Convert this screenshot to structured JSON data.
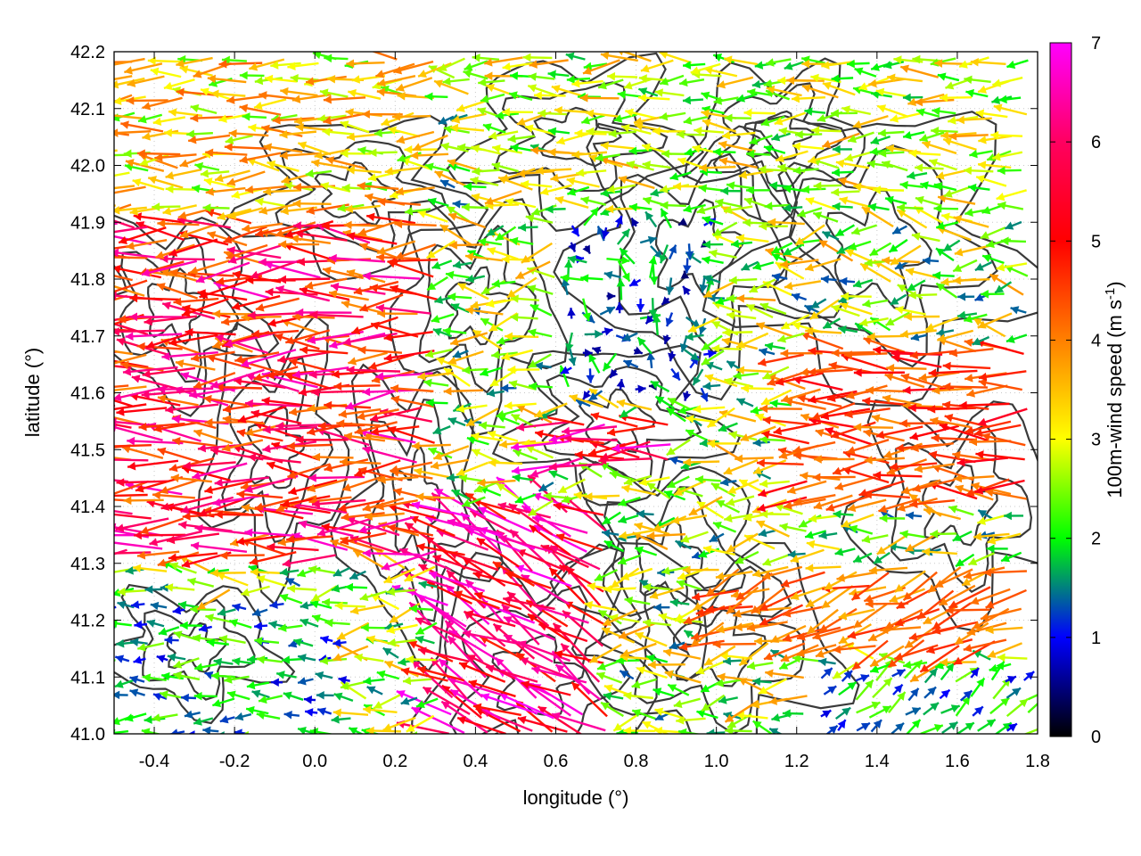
{
  "chart_data": {
    "type": "vector-field",
    "xlabel": "longitude (°)",
    "ylabel": "latitude (°)",
    "colorbar_label": "100m-wind speed (m s",
    "colorbar_label_superscript": "-1",
    "colorbar_label_close": ")",
    "xlim": [
      -0.5,
      1.8
    ],
    "ylim": [
      41.0,
      42.2
    ],
    "xticks": [
      "-0.4",
      "-0.2",
      "0.0",
      "0.2",
      "0.4",
      "0.6",
      "0.8",
      "1.0",
      "1.2",
      "1.4",
      "1.6",
      "1.8"
    ],
    "xtick_values": [
      -0.4,
      -0.2,
      0.0,
      0.2,
      0.4,
      0.6,
      0.8,
      1.0,
      1.2,
      1.4,
      1.6,
      1.8
    ],
    "yticks": [
      "41.0",
      "41.1",
      "41.2",
      "41.3",
      "41.4",
      "41.5",
      "41.6",
      "41.7",
      "41.8",
      "41.9",
      "42.0",
      "42.1",
      "42.2"
    ],
    "ytick_values": [
      41.0,
      41.1,
      41.2,
      41.3,
      41.4,
      41.5,
      41.6,
      41.7,
      41.8,
      41.9,
      42.0,
      42.1,
      42.2
    ],
    "colorbar_ticks": [
      "0",
      "1",
      "2",
      "3",
      "4",
      "5",
      "6",
      "7"
    ],
    "colorbar_range": [
      0,
      7
    ],
    "colorbar_colors": [
      "#000000",
      "#0000ff",
      "#00ff00",
      "#ffff00",
      "#ff8000",
      "#ff0000",
      "#ff00ff"
    ],
    "contour_color": "#3a3a3a",
    "grid": "dotted",
    "wind_regions": [
      {
        "lon": [
          -0.5,
          0.3
        ],
        "lat": [
          41.3,
          41.9
        ],
        "direction": "westward",
        "speed_ms": [
          4.5,
          6.8
        ]
      },
      {
        "lon": [
          -0.5,
          0.3
        ],
        "lat": [
          41.9,
          42.2
        ],
        "direction": "westward",
        "speed_ms": [
          2.5,
          5.0
        ]
      },
      {
        "lon": [
          -0.5,
          0.1
        ],
        "lat": [
          41.0,
          41.25
        ],
        "direction": "westward",
        "speed_ms": [
          1.0,
          3.0
        ]
      },
      {
        "lon": [
          0.3,
          0.75
        ],
        "lat": [
          41.0,
          41.4
        ],
        "direction": "north-westward",
        "speed_ms": [
          5.5,
          7.0
        ]
      },
      {
        "lon": [
          0.6,
          0.9
        ],
        "lat": [
          41.45,
          41.55
        ],
        "direction": "westward",
        "speed_ms": [
          5.5,
          7.0
        ]
      },
      {
        "lon": [
          0.6,
          1.0
        ],
        "lat": [
          41.6,
          41.9
        ],
        "direction": "variable",
        "speed_ms": [
          0.5,
          2.5
        ]
      },
      {
        "lon": [
          1.2,
          1.8
        ],
        "lat": [
          41.4,
          41.7
        ],
        "direction": "westward",
        "speed_ms": [
          4.5,
          6.0
        ]
      },
      {
        "lon": [
          1.0,
          1.8
        ],
        "lat": [
          41.15,
          41.3
        ],
        "direction": "south-westward",
        "speed_ms": [
          4.0,
          5.5
        ]
      },
      {
        "lon": [
          1.25,
          1.8
        ],
        "lat": [
          41.0,
          41.12
        ],
        "direction": "north-eastward",
        "speed_ms": [
          1.0,
          3.0
        ]
      },
      {
        "lon": [
          0.4,
          1.8
        ],
        "lat": [
          41.9,
          42.2
        ],
        "direction": "westward",
        "speed_ms": [
          2.0,
          4.5
        ]
      }
    ]
  }
}
